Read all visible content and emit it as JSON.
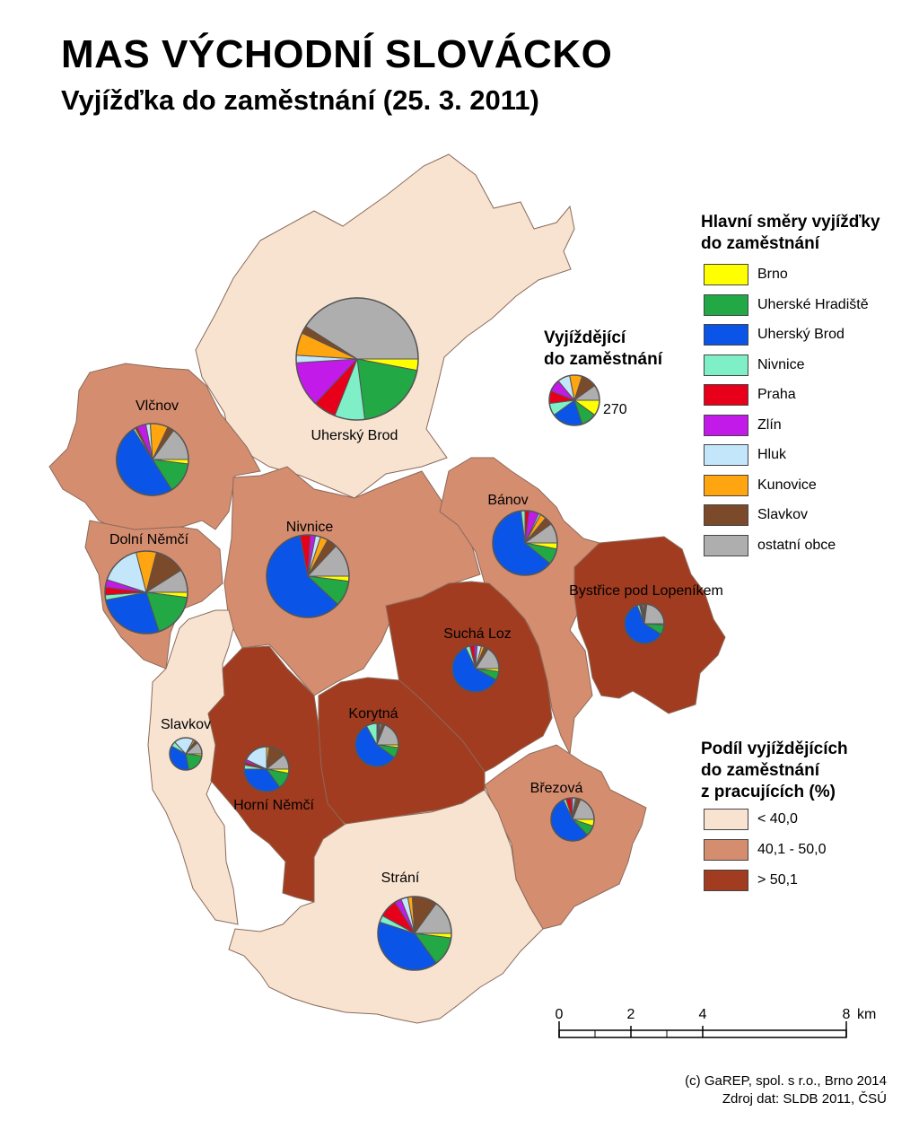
{
  "header": {
    "title": "MAS VÝCHODNÍ SLOVÁCKO",
    "subtitle": "Vyjížďka do zaměstnání (25. 3. 2011)"
  },
  "legend_directions": {
    "title_line1": "Hlavní směry vyjížďky",
    "title_line2": "do zaměstnání",
    "items": [
      {
        "label": "Brno",
        "color": "#ffff00"
      },
      {
        "label": "Uherské Hradiště",
        "color": "#22a845"
      },
      {
        "label": "Uherský Brod",
        "color": "#0a55e8"
      },
      {
        "label": "Nivnice",
        "color": "#7fefc7"
      },
      {
        "label": "Praha",
        "color": "#e8001a"
      },
      {
        "label": "Zlín",
        "color": "#c21ae8"
      },
      {
        "label": "Hluk",
        "color": "#c4e6fa"
      },
      {
        "label": "Kunovice",
        "color": "#ffa50f"
      },
      {
        "label": "Slavkov",
        "color": "#7b4a2a"
      },
      {
        "label": "ostatní obce",
        "color": "#aeaeae"
      }
    ]
  },
  "legend_size": {
    "title_line1": "Vyjíždějící",
    "title_line2": "do zaměstnání",
    "value_label": "270"
  },
  "legend_share": {
    "title_line1": "Podíl vyjíždějících",
    "title_line2": "do zaměstnání",
    "title_line3": "z pracujících (%)",
    "classes": [
      {
        "label": "< 40,0",
        "color": "#f8e3d1"
      },
      {
        "label": "40,1 - 50,0",
        "color": "#d58d70"
      },
      {
        "label": "> 50,1",
        "color": "#a23c21"
      }
    ]
  },
  "municipalities": [
    {
      "name": "Uherský Brod",
      "share_class": 0,
      "shares": [
        3,
        20,
        0,
        8,
        6,
        12,
        2,
        6,
        2,
        41
      ]
    },
    {
      "name": "Vlčnov",
      "share_class": 1,
      "shares": [
        2,
        14,
        50,
        1,
        1,
        4,
        2,
        8,
        3,
        15
      ]
    },
    {
      "name": "Dolní Němčí",
      "share_class": 1,
      "shares": [
        2,
        18,
        27,
        2,
        3,
        3,
        16,
        8,
        12,
        9
      ]
    },
    {
      "name": "Nivnice",
      "share_class": 1,
      "shares": [
        2,
        10,
        60,
        0,
        4,
        2,
        2,
        3,
        4,
        13
      ]
    },
    {
      "name": "Bánov",
      "share_class": 1,
      "shares": [
        3,
        8,
        62,
        2,
        2,
        5,
        1,
        3,
        4,
        10
      ]
    },
    {
      "name": "Bystřice pod Lopeníkem",
      "share_class": 2,
      "shares": [
        1,
        8,
        60,
        2,
        1,
        1,
        1,
        1,
        2,
        23
      ]
    },
    {
      "name": "Suchá Loz",
      "share_class": 2,
      "shares": [
        2,
        6,
        60,
        3,
        3,
        2,
        3,
        2,
        3,
        16
      ]
    },
    {
      "name": "Korytná",
      "share_class": 2,
      "shares": [
        2,
        8,
        57,
        8,
        1,
        1,
        1,
        1,
        2,
        19
      ]
    },
    {
      "name": "Slavkov",
      "share_class": 0,
      "shares": [
        2,
        20,
        36,
        5,
        0,
        0,
        20,
        2,
        3,
        12
      ]
    },
    {
      "name": "Horní Němčí",
      "share_class": 2,
      "shares": [
        3,
        12,
        35,
        3,
        2,
        2,
        18,
        2,
        12,
        11
      ]
    },
    {
      "name": "Březová",
      "share_class": 1,
      "shares": [
        5,
        8,
        55,
        2,
        4,
        1,
        2,
        1,
        3,
        19
      ]
    },
    {
      "name": "Strání",
      "share_class": 0,
      "shares": [
        2,
        13,
        40,
        3,
        8,
        3,
        3,
        2,
        11,
        15
      ]
    }
  ],
  "scale": {
    "ticks": [
      "0",
      "2",
      "4",
      "8"
    ],
    "unit": "km"
  },
  "credits": {
    "line1": "(c) GaREP, spol. s r.o., Brno 2014",
    "line2": "Zdroj dat: SLDB 2011, ČSÚ"
  }
}
